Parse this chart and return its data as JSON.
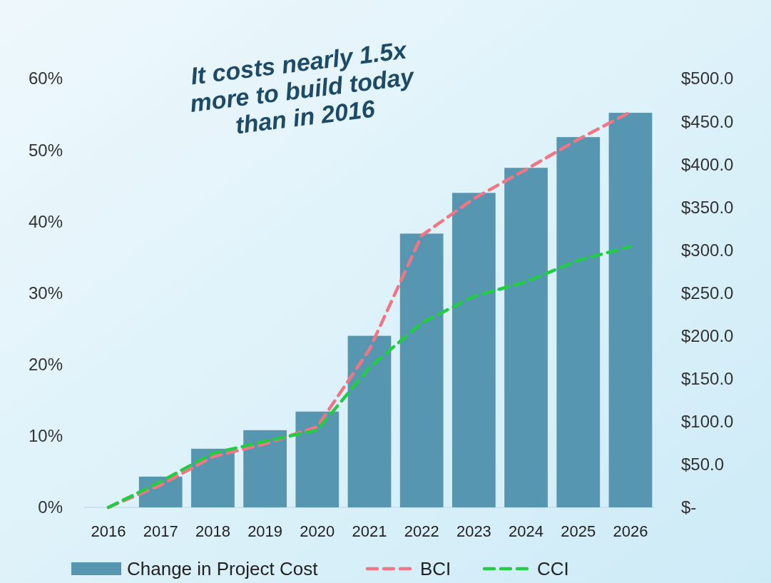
{
  "chart_data": {
    "type": "bar",
    "categories": [
      "2016",
      "2017",
      "2018",
      "2019",
      "2020",
      "2021",
      "2022",
      "2023",
      "2024",
      "2025",
      "2026"
    ],
    "series": [
      {
        "name": "Change in Project Cost",
        "color": "#5796b0",
        "values": [
          0,
          4.3,
          8.2,
          10.8,
          13.4,
          24.0,
          38.3,
          44.0,
          47.5,
          51.8,
          55.2
        ]
      },
      {
        "name": "BCI",
        "type": "line",
        "axis": "y2",
        "line_style": "dashed",
        "color": "#f07585",
        "values": [
          0,
          26,
          59,
          74,
          94,
          184,
          317,
          360,
          394,
          429,
          461
        ]
      },
      {
        "name": "CCI",
        "type": "line",
        "axis": "y2",
        "line_style": "dashed",
        "color": "#22cc44",
        "values": [
          0,
          30,
          63,
          77,
          90,
          163,
          215,
          246,
          263,
          288,
          304
        ]
      }
    ],
    "ylim": [
      0,
      60
    ],
    "yticks": [
      {
        "value": 0,
        "label": "0%"
      },
      {
        "value": 10,
        "label": "10%"
      },
      {
        "value": 20,
        "label": "20%"
      },
      {
        "value": 30,
        "label": "30%"
      },
      {
        "value": 40,
        "label": "40%"
      },
      {
        "value": 50,
        "label": "50%"
      },
      {
        "value": 60,
        "label": "60%"
      }
    ],
    "y2lim": [
      0,
      500
    ],
    "y2ticks": [
      {
        "value": 0,
        "label": "$-"
      },
      {
        "value": 50,
        "label": "$50.0"
      },
      {
        "value": 100,
        "label": "$100.0"
      },
      {
        "value": 150,
        "label": "$150.0"
      },
      {
        "value": 200,
        "label": "$200.0"
      },
      {
        "value": 250,
        "label": "$250.0"
      },
      {
        "value": 300,
        "label": "$300.0"
      },
      {
        "value": 350,
        "label": "$350.0"
      },
      {
        "value": 400,
        "label": "$400.0"
      },
      {
        "value": 450,
        "label": "$450.0"
      },
      {
        "value": 500,
        "label": "$500.0"
      }
    ],
    "annotations": [
      "It costs nearly 1.5x more to build today than in 2016"
    ],
    "legend": "bottom",
    "grid": false
  }
}
